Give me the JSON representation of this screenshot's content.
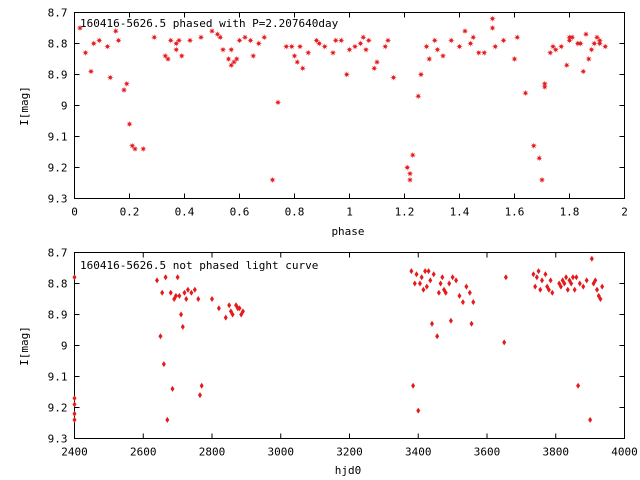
{
  "chart_data": [
    {
      "type": "scatter",
      "title": "160416-5626.5 phased with P=2.207640day",
      "xlabel": "phase",
      "ylabel": "I[mag]",
      "xlim": [
        0,
        2
      ],
      "ylim": [
        8.7,
        9.3
      ],
      "y_inverted": true,
      "x_ticks": [
        "0",
        "0.2",
        "0.4",
        "0.6",
        "0.8",
        "1",
        "1.2",
        "1.4",
        "1.6",
        "1.8",
        "2"
      ],
      "y_ticks": [
        "8.7",
        "8.8",
        "8.9",
        "9",
        "9.1",
        "9.2",
        "9.3"
      ],
      "marker": "star",
      "color": "#e41a1c",
      "x": [
        0.02,
        0.04,
        0.06,
        0.07,
        0.09,
        0.12,
        0.13,
        0.15,
        0.16,
        0.18,
        0.19,
        0.2,
        0.21,
        0.22,
        0.25,
        0.29,
        0.33,
        0.34,
        0.35,
        0.37,
        0.37,
        0.38,
        0.39,
        0.42,
        0.46,
        0.5,
        0.52,
        0.53,
        0.54,
        0.56,
        0.57,
        0.57,
        0.58,
        0.59,
        0.6,
        0.62,
        0.64,
        0.65,
        0.67,
        0.69,
        0.72,
        0.74,
        0.77,
        0.79,
        0.8,
        0.81,
        0.82,
        0.83,
        0.85,
        0.88,
        0.89,
        0.91,
        0.94,
        0.95,
        0.97,
        0.99,
        1.0,
        1.02,
        1.04,
        1.05,
        1.06,
        1.07,
        1.09,
        1.1,
        1.13,
        1.14,
        1.16,
        1.21,
        1.22,
        1.22,
        1.23,
        1.25,
        1.26,
        1.28,
        1.29,
        1.31,
        1.32,
        1.34,
        1.37,
        1.4,
        1.42,
        1.44,
        1.45,
        1.47,
        1.49,
        1.52,
        1.52,
        1.53,
        1.56,
        1.6,
        1.61,
        1.64,
        1.67,
        1.69,
        1.7,
        1.71,
        1.71,
        1.73,
        1.74,
        1.75,
        1.77,
        1.79,
        1.8,
        1.8,
        1.81,
        1.83,
        1.84,
        1.85,
        1.86,
        1.87,
        1.88,
        1.89,
        1.9,
        1.91,
        1.91,
        1.93
      ],
      "y": [
        8.75,
        8.83,
        8.89,
        8.8,
        8.79,
        8.81,
        8.91,
        8.76,
        8.79,
        8.95,
        8.93,
        9.06,
        9.13,
        9.14,
        9.14,
        8.78,
        8.84,
        8.85,
        8.79,
        8.8,
        8.82,
        8.79,
        8.84,
        8.79,
        8.78,
        8.76,
        8.77,
        8.78,
        8.82,
        8.85,
        8.82,
        8.87,
        8.86,
        8.85,
        8.79,
        8.78,
        8.79,
        8.84,
        8.8,
        8.78,
        9.24,
        8.99,
        8.81,
        8.81,
        8.84,
        8.86,
        8.81,
        8.88,
        8.83,
        8.79,
        8.8,
        8.81,
        8.83,
        8.79,
        8.79,
        8.9,
        8.82,
        8.81,
        8.8,
        8.78,
        8.82,
        8.79,
        8.88,
        8.86,
        8.81,
        8.79,
        8.91,
        9.2,
        9.24,
        9.22,
        9.16,
        8.97,
        8.9,
        8.81,
        8.85,
        8.79,
        8.82,
        8.84,
        8.79,
        8.81,
        8.76,
        8.8,
        8.78,
        8.83,
        8.83,
        8.75,
        8.72,
        8.81,
        8.79,
        8.85,
        8.78,
        8.96,
        9.13,
        9.17,
        9.24,
        8.94,
        8.93,
        8.83,
        8.81,
        8.82,
        8.81,
        8.87,
        8.78,
        8.79,
        8.78,
        8.8,
        8.8,
        8.89,
        8.77,
        8.85,
        8.82,
        8.8,
        8.78,
        8.8,
        8.79,
        8.81
      ]
    },
    {
      "type": "scatter",
      "title": "160416-5626.5 not phased light curve",
      "xlabel": "hjd0",
      "ylabel": "I[mag]",
      "xlim": [
        2400,
        4000
      ],
      "ylim": [
        8.7,
        9.3
      ],
      "y_inverted": true,
      "x_ticks": [
        "2400",
        "2600",
        "2800",
        "3000",
        "3200",
        "3400",
        "3600",
        "3800",
        "4000"
      ],
      "y_ticks": [
        "8.7",
        "8.8",
        "8.9",
        "9",
        "9.1",
        "9.2",
        "9.3"
      ],
      "marker": "diamond",
      "color": "#e41a1c",
      "x": [
        2400,
        2400,
        2400,
        2400,
        2400,
        2640,
        2650,
        2655,
        2660,
        2665,
        2670,
        2680,
        2685,
        2690,
        2695,
        2700,
        2705,
        2710,
        2715,
        2720,
        2725,
        2730,
        2740,
        2750,
        2760,
        2765,
        2770,
        2800,
        2820,
        2840,
        2850,
        2855,
        2860,
        2870,
        2875,
        2880,
        2885,
        2890,
        3380,
        3385,
        3390,
        3395,
        3400,
        3405,
        3410,
        3415,
        3420,
        3425,
        3430,
        3435,
        3440,
        3445,
        3455,
        3460,
        3465,
        3470,
        3475,
        3480,
        3490,
        3495,
        3500,
        3510,
        3520,
        3530,
        3540,
        3550,
        3555,
        3560,
        3650,
        3655,
        3735,
        3740,
        3745,
        3750,
        3755,
        3760,
        3770,
        3775,
        3780,
        3785,
        3790,
        3810,
        3815,
        3820,
        3825,
        3830,
        3835,
        3840,
        3845,
        3850,
        3855,
        3860,
        3865,
        3870,
        3880,
        3890,
        3900,
        3905,
        3910,
        3915,
        3920,
        3925,
        3930,
        3935
      ],
      "y": [
        8.78,
        9.17,
        9.19,
        9.22,
        9.24,
        8.79,
        8.97,
        8.83,
        9.06,
        8.78,
        9.24,
        8.83,
        9.14,
        8.85,
        8.84,
        8.78,
        8.84,
        8.9,
        8.94,
        8.83,
        8.85,
        8.82,
        8.83,
        8.82,
        8.85,
        9.16,
        9.13,
        8.85,
        8.88,
        8.91,
        8.87,
        8.89,
        8.9,
        8.87,
        8.88,
        8.88,
        8.9,
        8.89,
        8.76,
        9.13,
        8.8,
        8.77,
        9.21,
        8.8,
        8.78,
        8.82,
        8.76,
        8.81,
        8.76,
        8.79,
        8.93,
        8.77,
        8.97,
        8.83,
        8.8,
        8.78,
        8.82,
        8.83,
        8.8,
        8.92,
        8.78,
        8.79,
        8.84,
        8.86,
        8.81,
        8.83,
        8.93,
        8.86,
        8.99,
        8.78,
        8.77,
        8.81,
        8.78,
        8.76,
        8.82,
        8.79,
        8.77,
        8.81,
        8.82,
        8.79,
        8.83,
        8.8,
        8.81,
        8.79,
        8.8,
        8.78,
        8.82,
        8.79,
        8.8,
        8.78,
        8.82,
        8.78,
        9.13,
        8.8,
        8.81,
        8.79,
        9.24,
        8.72,
        8.8,
        8.79,
        8.82,
        8.84,
        8.85,
        8.81
      ]
    }
  ]
}
